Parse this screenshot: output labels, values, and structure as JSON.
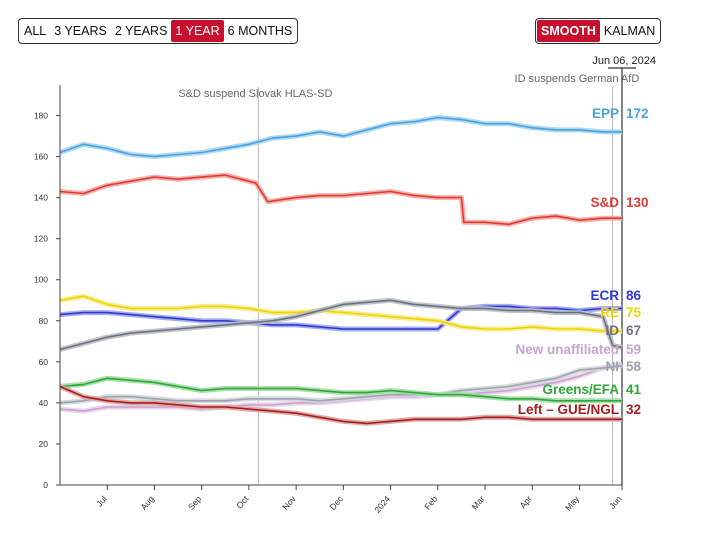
{
  "controls": {
    "range_options": [
      "ALL",
      "3 YEARS",
      "2 YEARS",
      "1 YEAR",
      "6 MONTHS"
    ],
    "range_selected": "1 YEAR",
    "method_options": [
      "SMOOTH",
      "KALMAN"
    ],
    "method_selected": "SMOOTH",
    "accent_color": "#c8102e"
  },
  "chart_data": {
    "type": "line",
    "title": "",
    "xlabel": "",
    "ylabel": "",
    "ylim": [
      0,
      190
    ],
    "yticks": [
      0,
      20,
      40,
      60,
      80,
      100,
      120,
      140,
      160,
      180
    ],
    "x_range": [
      0,
      11.9
    ],
    "x_unit": "months since mid-June 2023",
    "month_ticks": [
      {
        "label": "Jul",
        "x": 1.0
      },
      {
        "label": "Aug",
        "x": 2.0
      },
      {
        "label": "Sep",
        "x": 3.0
      },
      {
        "label": "Oct",
        "x": 4.0
      },
      {
        "label": "Nov",
        "x": 5.0
      },
      {
        "label": "Dec",
        "x": 6.0
      },
      {
        "label": "2024",
        "x": 7.0
      },
      {
        "label": "Feb",
        "x": 8.0
      },
      {
        "label": "Mar",
        "x": 9.0
      },
      {
        "label": "Apr",
        "x": 10.0
      },
      {
        "label": "May",
        "x": 11.0
      },
      {
        "label": "Jun",
        "x": 11.9
      }
    ],
    "current_date": "Jun 06, 2024",
    "current_x": 11.9,
    "events": [
      {
        "label": "S&D suspend Slovak HLAS-SD",
        "x": 4.2
      },
      {
        "label": "ID suspends German AfD",
        "x": 11.7
      }
    ],
    "series": [
      {
        "name": "EPP",
        "final": "172",
        "color": "#4aa3df",
        "band": "#a9d4f0",
        "x": [
          0,
          0.5,
          1,
          1.5,
          2,
          2.5,
          3,
          3.5,
          4,
          4.5,
          5,
          5.5,
          6,
          6.5,
          7,
          7.5,
          8,
          8.5,
          9,
          9.5,
          10,
          10.5,
          11,
          11.5,
          11.9
        ],
        "values": [
          162,
          166,
          164,
          161,
          160,
          161,
          162,
          164,
          166,
          169,
          170,
          172,
          170,
          173,
          176,
          177,
          179,
          178,
          176,
          176,
          174,
          173,
          173,
          172,
          172
        ]
      },
      {
        "name": "S&D",
        "final": "130",
        "color": "#e03c31",
        "band": "#f5a9a3",
        "x": [
          0,
          0.5,
          1,
          1.5,
          2,
          2.5,
          3,
          3.5,
          4,
          4.15,
          4.4,
          5,
          5.5,
          6,
          6.5,
          7,
          7.5,
          8,
          8.5,
          8.55,
          9,
          9.5,
          10,
          10.5,
          11,
          11.5,
          11.9
        ],
        "values": [
          143,
          142,
          146,
          148,
          150,
          149,
          150,
          151,
          148,
          147,
          138,
          140,
          141,
          141,
          142,
          143,
          141,
          140,
          140,
          128,
          128,
          127,
          130,
          131,
          129,
          130,
          130
        ]
      },
      {
        "name": "ECR",
        "final": "86",
        "color": "#2e3bd1",
        "band": "#9ea4ec",
        "x": [
          0,
          0.5,
          1,
          1.5,
          2,
          2.5,
          3,
          3.5,
          4,
          4.5,
          5,
          5.5,
          6,
          6.5,
          7,
          7.5,
          8,
          8.5,
          9,
          9.5,
          10,
          10.5,
          11,
          11.5,
          11.9
        ],
        "values": [
          83,
          84,
          84,
          83,
          82,
          81,
          80,
          80,
          79,
          78,
          78,
          77,
          76,
          76,
          76,
          76,
          76,
          86,
          87,
          87,
          86,
          86,
          85,
          86,
          86
        ]
      },
      {
        "name": "RE",
        "final": "75",
        "color": "#f0d400",
        "band": "#f7eb8c",
        "x": [
          0,
          0.5,
          1,
          1.5,
          2,
          2.5,
          3,
          3.5,
          4,
          4.5,
          5,
          5.5,
          6,
          6.5,
          7,
          7.5,
          8,
          8.5,
          9,
          9.5,
          10,
          10.5,
          11,
          11.5,
          11.9
        ],
        "values": [
          90,
          92,
          88,
          86,
          86,
          86,
          87,
          87,
          86,
          84,
          84,
          85,
          84,
          83,
          82,
          81,
          80,
          77,
          76,
          76,
          77,
          76,
          76,
          75,
          75
        ]
      },
      {
        "name": "ID",
        "final": "67",
        "color": "#6b7280",
        "band": "#b9bec6",
        "x": [
          0,
          0.5,
          1,
          1.5,
          2,
          2.5,
          3,
          3.5,
          4,
          4.5,
          5,
          5.5,
          6,
          6.5,
          7,
          7.5,
          8,
          8.5,
          9,
          9.5,
          10,
          10.5,
          11,
          11.5,
          11.7,
          11.9
        ],
        "values": [
          66,
          69,
          72,
          74,
          75,
          76,
          77,
          78,
          79,
          80,
          82,
          85,
          88,
          89,
          90,
          88,
          87,
          86,
          86,
          85,
          85,
          84,
          84,
          82,
          68,
          67
        ]
      },
      {
        "name": "New unaffiliated",
        "final": "59",
        "color": "#c9a3cf",
        "band": "#e7d2ea",
        "x": [
          0,
          0.5,
          1,
          1.5,
          2,
          2.5,
          3,
          3.5,
          4,
          4.5,
          5,
          5.5,
          6,
          6.5,
          7,
          7.5,
          8,
          8.5,
          9,
          9.5,
          10,
          10.5,
          11,
          11.5,
          11.9
        ],
        "values": [
          37,
          36,
          38,
          38,
          38,
          38,
          37,
          38,
          39,
          39,
          40,
          40,
          41,
          42,
          43,
          43,
          44,
          44,
          45,
          46,
          48,
          50,
          53,
          57,
          59
        ]
      },
      {
        "name": "NI",
        "final": "58",
        "color": "#9ca3af",
        "band": "#d4d7dc",
        "x": [
          0,
          0.5,
          1,
          1.5,
          2,
          2.5,
          3,
          3.5,
          4,
          4.5,
          5,
          5.5,
          6,
          6.5,
          7,
          7.5,
          8,
          8.5,
          9,
          9.5,
          10,
          10.5,
          11,
          11.5,
          11.9
        ],
        "values": [
          40,
          41,
          43,
          43,
          42,
          41,
          41,
          41,
          42,
          42,
          42,
          41,
          42,
          43,
          44,
          44,
          44,
          46,
          47,
          48,
          50,
          52,
          56,
          57,
          58
        ]
      },
      {
        "name": "Greens/EFA",
        "final": "41",
        "color": "#2ea836",
        "band": "#9fdba3",
        "x": [
          0,
          0.5,
          1,
          1.5,
          2,
          2.5,
          3,
          3.5,
          4,
          4.5,
          5,
          5.5,
          6,
          6.5,
          7,
          7.5,
          8,
          8.5,
          9,
          9.5,
          10,
          10.5,
          11,
          11.5,
          11.9
        ],
        "values": [
          48,
          49,
          52,
          51,
          50,
          48,
          46,
          47,
          47,
          47,
          47,
          46,
          45,
          45,
          46,
          45,
          44,
          44,
          43,
          42,
          42,
          41,
          41,
          41,
          41
        ]
      },
      {
        "name": "Left – GUE/NGL",
        "final": "32",
        "color": "#a71d1d",
        "band": "#dca3a3",
        "x": [
          0,
          0.5,
          1,
          1.5,
          2,
          2.5,
          3,
          3.5,
          4,
          4.5,
          5,
          5.5,
          6,
          6.5,
          7,
          7.5,
          8,
          8.5,
          9,
          9.5,
          10,
          10.5,
          11,
          11.5,
          11.9
        ],
        "values": [
          48,
          43,
          41,
          40,
          40,
          39,
          38,
          38,
          37,
          36,
          35,
          33,
          31,
          30,
          31,
          32,
          32,
          32,
          33,
          33,
          32,
          32,
          32,
          32,
          32
        ]
      }
    ]
  }
}
